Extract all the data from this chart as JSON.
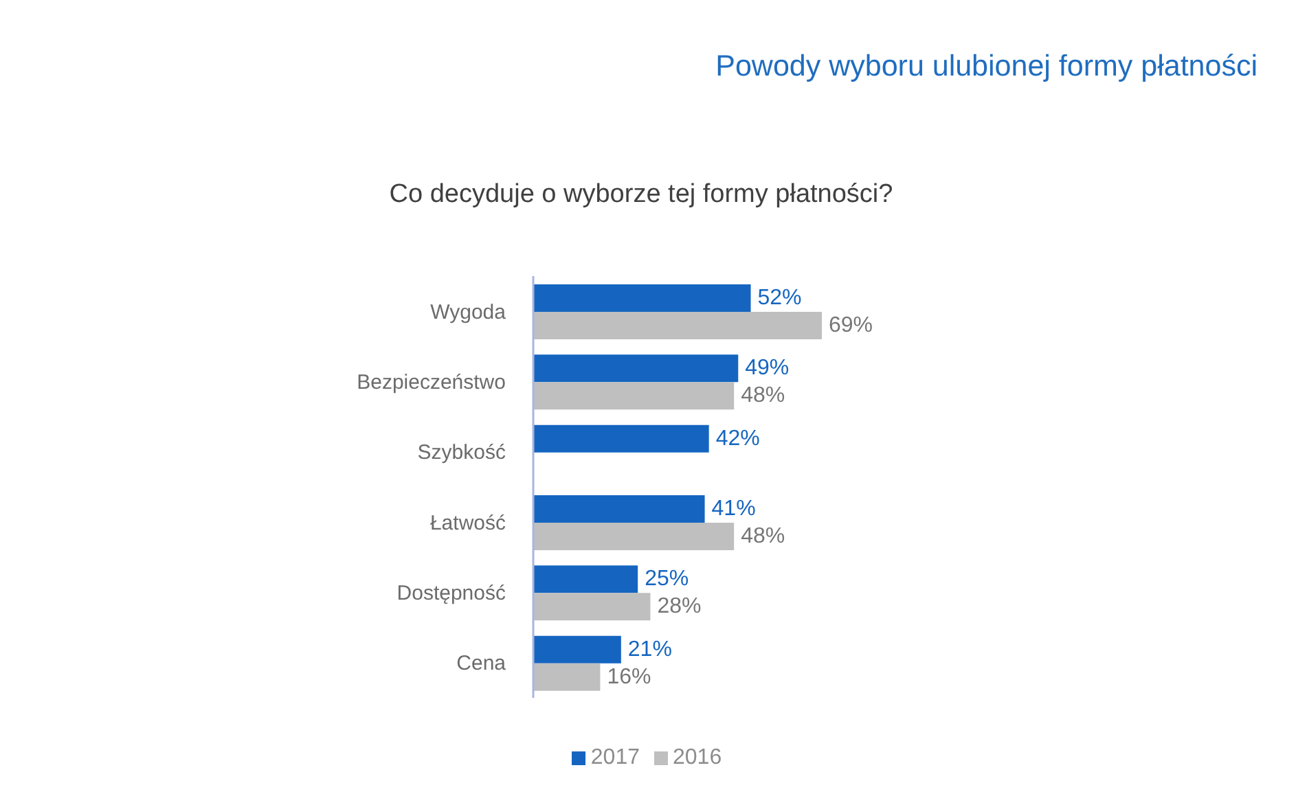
{
  "chart_data": {
    "type": "bar",
    "orientation": "horizontal",
    "title": "Powody wyboru ulubionej formy płatności",
    "subtitle": "Co decyduje o wyborze tej formy płatności?",
    "categories": [
      "Wygoda",
      "Bezpieczeństwo",
      "Szybkość",
      "Łatwość",
      "Dostępność",
      "Cena"
    ],
    "series": [
      {
        "name": "2017",
        "color": "#1565c0",
        "values": [
          52,
          49,
          42,
          41,
          25,
          21
        ],
        "value_labels": [
          "52%",
          "49%",
          "42%",
          "41%",
          "25%",
          "21%"
        ]
      },
      {
        "name": "2016",
        "color": "#bfbfbf",
        "values": [
          69,
          48,
          null,
          48,
          28,
          16
        ],
        "value_labels": [
          "69%",
          "48%",
          null,
          "48%",
          "28%",
          "16%"
        ]
      }
    ],
    "legend": "bottom"
  }
}
